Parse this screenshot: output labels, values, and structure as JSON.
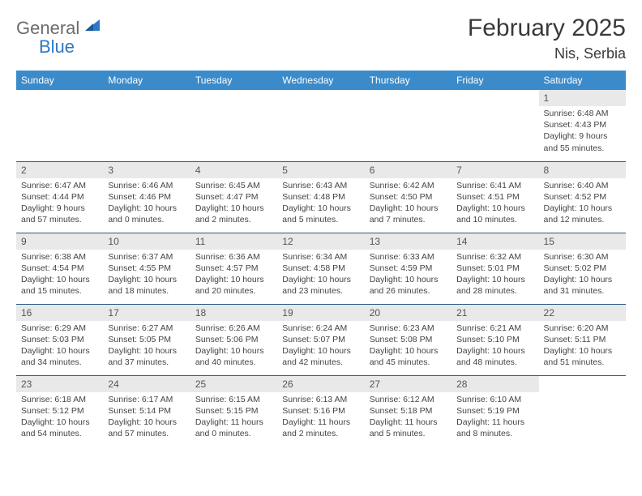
{
  "logo": {
    "gray": "General",
    "blue": "Blue"
  },
  "title": "February 2025",
  "location": "Nis, Serbia",
  "colors": {
    "header_bg": "#3b8bca",
    "header_text": "#ffffff",
    "daynum_bg": "#e9e9e9",
    "row_border": "#2a5a8a",
    "logo_gray": "#6b6b6b",
    "logo_blue": "#2f78c2"
  },
  "weekdays": [
    "Sunday",
    "Monday",
    "Tuesday",
    "Wednesday",
    "Thursday",
    "Friday",
    "Saturday"
  ],
  "weeks": [
    [
      {
        "n": "",
        "sr": "",
        "ss": "",
        "dl": ""
      },
      {
        "n": "",
        "sr": "",
        "ss": "",
        "dl": ""
      },
      {
        "n": "",
        "sr": "",
        "ss": "",
        "dl": ""
      },
      {
        "n": "",
        "sr": "",
        "ss": "",
        "dl": ""
      },
      {
        "n": "",
        "sr": "",
        "ss": "",
        "dl": ""
      },
      {
        "n": "",
        "sr": "",
        "ss": "",
        "dl": ""
      },
      {
        "n": "1",
        "sr": "Sunrise: 6:48 AM",
        "ss": "Sunset: 4:43 PM",
        "dl": "Daylight: 9 hours and 55 minutes."
      }
    ],
    [
      {
        "n": "2",
        "sr": "Sunrise: 6:47 AM",
        "ss": "Sunset: 4:44 PM",
        "dl": "Daylight: 9 hours and 57 minutes."
      },
      {
        "n": "3",
        "sr": "Sunrise: 6:46 AM",
        "ss": "Sunset: 4:46 PM",
        "dl": "Daylight: 10 hours and 0 minutes."
      },
      {
        "n": "4",
        "sr": "Sunrise: 6:45 AM",
        "ss": "Sunset: 4:47 PM",
        "dl": "Daylight: 10 hours and 2 minutes."
      },
      {
        "n": "5",
        "sr": "Sunrise: 6:43 AM",
        "ss": "Sunset: 4:48 PM",
        "dl": "Daylight: 10 hours and 5 minutes."
      },
      {
        "n": "6",
        "sr": "Sunrise: 6:42 AM",
        "ss": "Sunset: 4:50 PM",
        "dl": "Daylight: 10 hours and 7 minutes."
      },
      {
        "n": "7",
        "sr": "Sunrise: 6:41 AM",
        "ss": "Sunset: 4:51 PM",
        "dl": "Daylight: 10 hours and 10 minutes."
      },
      {
        "n": "8",
        "sr": "Sunrise: 6:40 AM",
        "ss": "Sunset: 4:52 PM",
        "dl": "Daylight: 10 hours and 12 minutes."
      }
    ],
    [
      {
        "n": "9",
        "sr": "Sunrise: 6:38 AM",
        "ss": "Sunset: 4:54 PM",
        "dl": "Daylight: 10 hours and 15 minutes."
      },
      {
        "n": "10",
        "sr": "Sunrise: 6:37 AM",
        "ss": "Sunset: 4:55 PM",
        "dl": "Daylight: 10 hours and 18 minutes."
      },
      {
        "n": "11",
        "sr": "Sunrise: 6:36 AM",
        "ss": "Sunset: 4:57 PM",
        "dl": "Daylight: 10 hours and 20 minutes."
      },
      {
        "n": "12",
        "sr": "Sunrise: 6:34 AM",
        "ss": "Sunset: 4:58 PM",
        "dl": "Daylight: 10 hours and 23 minutes."
      },
      {
        "n": "13",
        "sr": "Sunrise: 6:33 AM",
        "ss": "Sunset: 4:59 PM",
        "dl": "Daylight: 10 hours and 26 minutes."
      },
      {
        "n": "14",
        "sr": "Sunrise: 6:32 AM",
        "ss": "Sunset: 5:01 PM",
        "dl": "Daylight: 10 hours and 28 minutes."
      },
      {
        "n": "15",
        "sr": "Sunrise: 6:30 AM",
        "ss": "Sunset: 5:02 PM",
        "dl": "Daylight: 10 hours and 31 minutes."
      }
    ],
    [
      {
        "n": "16",
        "sr": "Sunrise: 6:29 AM",
        "ss": "Sunset: 5:03 PM",
        "dl": "Daylight: 10 hours and 34 minutes."
      },
      {
        "n": "17",
        "sr": "Sunrise: 6:27 AM",
        "ss": "Sunset: 5:05 PM",
        "dl": "Daylight: 10 hours and 37 minutes."
      },
      {
        "n": "18",
        "sr": "Sunrise: 6:26 AM",
        "ss": "Sunset: 5:06 PM",
        "dl": "Daylight: 10 hours and 40 minutes."
      },
      {
        "n": "19",
        "sr": "Sunrise: 6:24 AM",
        "ss": "Sunset: 5:07 PM",
        "dl": "Daylight: 10 hours and 42 minutes."
      },
      {
        "n": "20",
        "sr": "Sunrise: 6:23 AM",
        "ss": "Sunset: 5:08 PM",
        "dl": "Daylight: 10 hours and 45 minutes."
      },
      {
        "n": "21",
        "sr": "Sunrise: 6:21 AM",
        "ss": "Sunset: 5:10 PM",
        "dl": "Daylight: 10 hours and 48 minutes."
      },
      {
        "n": "22",
        "sr": "Sunrise: 6:20 AM",
        "ss": "Sunset: 5:11 PM",
        "dl": "Daylight: 10 hours and 51 minutes."
      }
    ],
    [
      {
        "n": "23",
        "sr": "Sunrise: 6:18 AM",
        "ss": "Sunset: 5:12 PM",
        "dl": "Daylight: 10 hours and 54 minutes."
      },
      {
        "n": "24",
        "sr": "Sunrise: 6:17 AM",
        "ss": "Sunset: 5:14 PM",
        "dl": "Daylight: 10 hours and 57 minutes."
      },
      {
        "n": "25",
        "sr": "Sunrise: 6:15 AM",
        "ss": "Sunset: 5:15 PM",
        "dl": "Daylight: 11 hours and 0 minutes."
      },
      {
        "n": "26",
        "sr": "Sunrise: 6:13 AM",
        "ss": "Sunset: 5:16 PM",
        "dl": "Daylight: 11 hours and 2 minutes."
      },
      {
        "n": "27",
        "sr": "Sunrise: 6:12 AM",
        "ss": "Sunset: 5:18 PM",
        "dl": "Daylight: 11 hours and 5 minutes."
      },
      {
        "n": "28",
        "sr": "Sunrise: 6:10 AM",
        "ss": "Sunset: 5:19 PM",
        "dl": "Daylight: 11 hours and 8 minutes."
      },
      {
        "n": "",
        "sr": "",
        "ss": "",
        "dl": ""
      }
    ]
  ]
}
